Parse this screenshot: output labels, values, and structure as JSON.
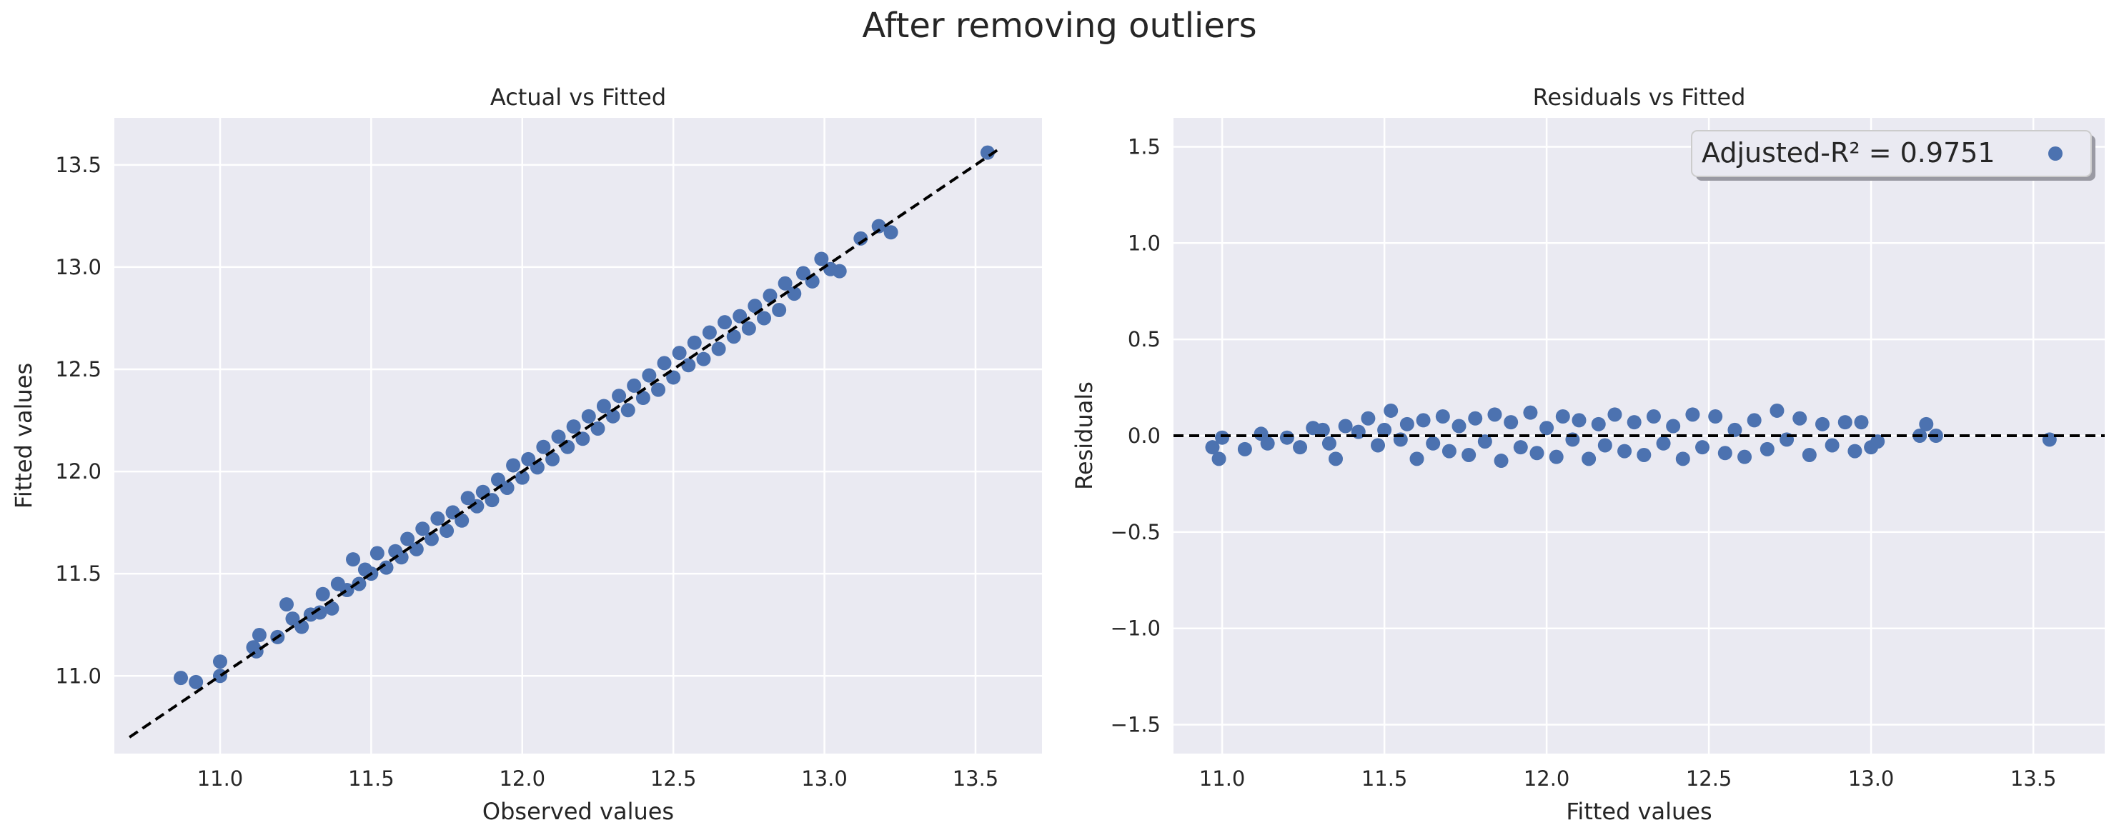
{
  "figure": {
    "suptitle": "After removing outliers"
  },
  "colors": {
    "background": "#eaeaf2",
    "grid": "#ffffff",
    "points": "#4c72b0",
    "reference_line": "#000000",
    "text": "#262626"
  },
  "chart_data": [
    {
      "type": "scatter",
      "title": "Actual vs Fitted",
      "xlabel": "Observed values",
      "ylabel": "Fitted values",
      "xlim": [
        10.65,
        13.72
      ],
      "ylim": [
        10.62,
        13.73
      ],
      "xticks": [
        "11.0",
        "11.5",
        "12.0",
        "12.5",
        "13.0",
        "13.5"
      ],
      "yticks": [
        "11.0",
        "11.5",
        "12.0",
        "12.5",
        "13.0",
        "13.5"
      ],
      "grid": true,
      "reference_line": {
        "style": "dashed",
        "from": [
          10.7,
          10.7
        ],
        "to": [
          13.58,
          13.58
        ]
      },
      "series": [
        {
          "points": [
            [
              10.87,
              10.99
            ],
            [
              10.92,
              10.97
            ],
            [
              11.0,
              11.0
            ],
            [
              11.0,
              11.07
            ],
            [
              11.11,
              11.14
            ],
            [
              11.12,
              11.12
            ],
            [
              11.13,
              11.2
            ],
            [
              11.19,
              11.19
            ],
            [
              11.22,
              11.35
            ],
            [
              11.24,
              11.28
            ],
            [
              11.27,
              11.24
            ],
            [
              11.3,
              11.3
            ],
            [
              11.33,
              11.31
            ],
            [
              11.34,
              11.4
            ],
            [
              11.37,
              11.33
            ],
            [
              11.39,
              11.45
            ],
            [
              11.42,
              11.42
            ],
            [
              11.44,
              11.57
            ],
            [
              11.46,
              11.45
            ],
            [
              11.48,
              11.52
            ],
            [
              11.5,
              11.5
            ],
            [
              11.52,
              11.6
            ],
            [
              11.55,
              11.53
            ],
            [
              11.58,
              11.61
            ],
            [
              11.6,
              11.58
            ],
            [
              11.62,
              11.67
            ],
            [
              11.65,
              11.62
            ],
            [
              11.67,
              11.72
            ],
            [
              11.7,
              11.67
            ],
            [
              11.72,
              11.77
            ],
            [
              11.75,
              11.71
            ],
            [
              11.77,
              11.8
            ],
            [
              11.8,
              11.76
            ],
            [
              11.82,
              11.87
            ],
            [
              11.85,
              11.83
            ],
            [
              11.87,
              11.9
            ],
            [
              11.9,
              11.86
            ],
            [
              11.92,
              11.96
            ],
            [
              11.95,
              11.92
            ],
            [
              11.97,
              12.03
            ],
            [
              12.0,
              11.97
            ],
            [
              12.02,
              12.06
            ],
            [
              12.05,
              12.02
            ],
            [
              12.07,
              12.12
            ],
            [
              12.1,
              12.06
            ],
            [
              12.12,
              12.17
            ],
            [
              12.15,
              12.12
            ],
            [
              12.17,
              12.22
            ],
            [
              12.2,
              12.16
            ],
            [
              12.22,
              12.27
            ],
            [
              12.25,
              12.21
            ],
            [
              12.27,
              12.32
            ],
            [
              12.3,
              12.27
            ],
            [
              12.32,
              12.37
            ],
            [
              12.35,
              12.3
            ],
            [
              12.37,
              12.42
            ],
            [
              12.4,
              12.36
            ],
            [
              12.42,
              12.47
            ],
            [
              12.45,
              12.4
            ],
            [
              12.47,
              12.53
            ],
            [
              12.5,
              12.46
            ],
            [
              12.52,
              12.58
            ],
            [
              12.55,
              12.52
            ],
            [
              12.57,
              12.63
            ],
            [
              12.6,
              12.55
            ],
            [
              12.62,
              12.68
            ],
            [
              12.65,
              12.6
            ],
            [
              12.67,
              12.73
            ],
            [
              12.7,
              12.66
            ],
            [
              12.72,
              12.76
            ],
            [
              12.75,
              12.7
            ],
            [
              12.77,
              12.81
            ],
            [
              12.8,
              12.75
            ],
            [
              12.82,
              12.86
            ],
            [
              12.85,
              12.79
            ],
            [
              12.87,
              12.92
            ],
            [
              12.9,
              12.87
            ],
            [
              12.93,
              12.97
            ],
            [
              12.96,
              12.93
            ],
            [
              12.99,
              13.04
            ],
            [
              13.02,
              12.99
            ],
            [
              13.05,
              12.98
            ],
            [
              13.12,
              13.14
            ],
            [
              13.18,
              13.2
            ],
            [
              13.22,
              13.17
            ],
            [
              13.54,
              13.56
            ]
          ]
        }
      ]
    },
    {
      "type": "scatter",
      "title": "Residuals vs Fitted",
      "xlabel": "Fitted values",
      "ylabel": "Residuals",
      "xlim": [
        10.85,
        13.72
      ],
      "ylim": [
        -1.65,
        1.65
      ],
      "xticks": [
        "11.0",
        "11.5",
        "12.0",
        "12.5",
        "13.0",
        "13.5"
      ],
      "yticks": [
        "1.5",
        "1.0",
        "0.5",
        "0.0",
        "−0.5",
        "−1.0",
        "−1.5"
      ],
      "grid": true,
      "reference_line": {
        "style": "dashed",
        "y": 0.0
      },
      "legend": {
        "label": "Adjusted-R² = 0.9751",
        "location": "top-right"
      },
      "series": [
        {
          "name": "Adjusted-R² = 0.9751",
          "points": [
            [
              10.97,
              -0.06
            ],
            [
              10.99,
              -0.12
            ],
            [
              11.0,
              -0.01
            ],
            [
              11.07,
              -0.07
            ],
            [
              11.12,
              0.01
            ],
            [
              11.14,
              -0.04
            ],
            [
              11.2,
              -0.01
            ],
            [
              11.24,
              -0.06
            ],
            [
              11.28,
              0.04
            ],
            [
              11.31,
              0.03
            ],
            [
              11.33,
              -0.04
            ],
            [
              11.35,
              -0.12
            ],
            [
              11.38,
              0.05
            ],
            [
              11.42,
              0.02
            ],
            [
              11.45,
              0.09
            ],
            [
              11.48,
              -0.05
            ],
            [
              11.5,
              0.03
            ],
            [
              11.52,
              0.13
            ],
            [
              11.55,
              -0.02
            ],
            [
              11.57,
              0.06
            ],
            [
              11.6,
              -0.12
            ],
            [
              11.62,
              0.08
            ],
            [
              11.65,
              -0.04
            ],
            [
              11.68,
              0.1
            ],
            [
              11.7,
              -0.08
            ],
            [
              11.73,
              0.05
            ],
            [
              11.76,
              -0.1
            ],
            [
              11.78,
              0.09
            ],
            [
              11.81,
              -0.03
            ],
            [
              11.84,
              0.11
            ],
            [
              11.86,
              -0.13
            ],
            [
              11.89,
              0.07
            ],
            [
              11.92,
              -0.06
            ],
            [
              11.95,
              0.12
            ],
            [
              11.97,
              -0.09
            ],
            [
              12.0,
              0.04
            ],
            [
              12.03,
              -0.11
            ],
            [
              12.05,
              0.1
            ],
            [
              12.08,
              -0.02
            ],
            [
              12.1,
              0.08
            ],
            [
              12.13,
              -0.12
            ],
            [
              12.16,
              0.06
            ],
            [
              12.18,
              -0.05
            ],
            [
              12.21,
              0.11
            ],
            [
              12.24,
              -0.08
            ],
            [
              12.27,
              0.07
            ],
            [
              12.3,
              -0.1
            ],
            [
              12.33,
              0.1
            ],
            [
              12.36,
              -0.04
            ],
            [
              12.39,
              0.05
            ],
            [
              12.42,
              -0.12
            ],
            [
              12.45,
              0.11
            ],
            [
              12.48,
              -0.06
            ],
            [
              12.52,
              0.1
            ],
            [
              12.55,
              -0.09
            ],
            [
              12.58,
              0.03
            ],
            [
              12.61,
              -0.11
            ],
            [
              12.64,
              0.08
            ],
            [
              12.68,
              -0.07
            ],
            [
              12.71,
              0.13
            ],
            [
              12.74,
              -0.02
            ],
            [
              12.78,
              0.09
            ],
            [
              12.81,
              -0.1
            ],
            [
              12.85,
              0.06
            ],
            [
              12.88,
              -0.05
            ],
            [
              12.92,
              0.07
            ],
            [
              12.95,
              -0.08
            ],
            [
              12.97,
              0.07
            ],
            [
              13.0,
              -0.06
            ],
            [
              13.02,
              -0.03
            ],
            [
              13.15,
              0.0
            ],
            [
              13.17,
              0.06
            ],
            [
              13.2,
              0.0
            ],
            [
              13.55,
              -0.02
            ]
          ]
        }
      ]
    }
  ]
}
